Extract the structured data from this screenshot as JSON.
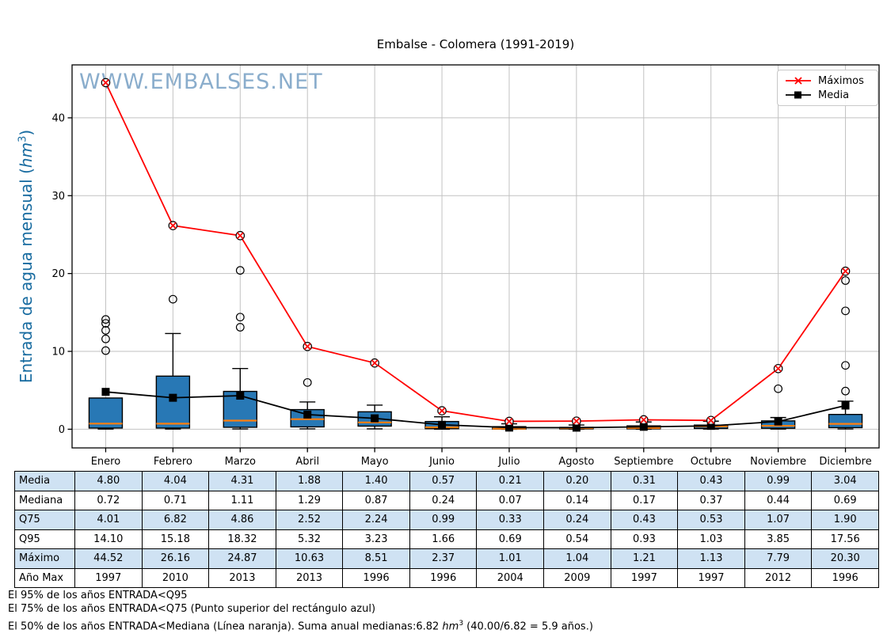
{
  "title": "Embalse - Colomera (1991-2019)",
  "watermark": "WWW.EMBALSES.NET",
  "ylabel": {
    "prefix": "Entrada de agua mensual (",
    "unit": "hm",
    "sup": "3",
    "suffix": ")"
  },
  "legend": {
    "maximos_label": "Máximos",
    "media_label": "Media"
  },
  "colors": {
    "box_fill": "#2878b5",
    "median_orange": "#ff7f0e",
    "max_red": "#ff0000",
    "media_black": "#000000",
    "grid": "#c2c2c2",
    "watermark_blue": "#3d77ab",
    "ylabel_blue": "#176ba0",
    "table_shade": "#cfe2f3",
    "axis": "#000000"
  },
  "chart_data": {
    "type": "boxplot_with_lines",
    "title": "Embalse - Colomera (1991-2019)",
    "ylabel": "Entrada de agua mensual (hm3)",
    "categories": [
      "Enero",
      "Febrero",
      "Marzo",
      "Abril",
      "Mayo",
      "Junio",
      "Julio",
      "Agosto",
      "Septiembre",
      "Octubre",
      "Noviembre",
      "Diciembre"
    ],
    "yticks": [
      0,
      10,
      20,
      30,
      40
    ],
    "ylim": [
      -2.4,
      46.8
    ],
    "grid": true,
    "legend_position": "upper right",
    "series": [
      {
        "name": "Máximos",
        "marker": "circle-x",
        "values": [
          44.52,
          26.16,
          24.87,
          10.63,
          8.51,
          2.37,
          1.01,
          1.04,
          1.21,
          1.13,
          7.79,
          20.3
        ]
      },
      {
        "name": "Media",
        "marker": "square",
        "values": [
          4.8,
          4.04,
          4.31,
          1.88,
          1.4,
          0.57,
          0.21,
          0.2,
          0.31,
          0.43,
          0.99,
          3.04
        ]
      }
    ],
    "boxplot": {
      "median": [
        0.72,
        0.71,
        1.11,
        1.29,
        0.87,
        0.24,
        0.07,
        0.14,
        0.17,
        0.37,
        0.44,
        0.69
      ],
      "q75": [
        4.01,
        6.82,
        4.86,
        2.52,
        2.24,
        0.99,
        0.33,
        0.24,
        0.43,
        0.53,
        1.07,
        1.9
      ],
      "q25_est": [
        0.15,
        0.15,
        0.25,
        0.3,
        0.4,
        0.07,
        0.02,
        0.04,
        0.05,
        0.1,
        0.12,
        0.2
      ],
      "whisker_high_est": [
        4.01,
        12.3,
        7.8,
        3.5,
        3.1,
        1.6,
        0.69,
        0.54,
        0.93,
        1.03,
        1.5,
        3.6
      ],
      "whisker_low_est": [
        0.02,
        0.02,
        0.03,
        0.05,
        0.05,
        0.01,
        0.0,
        0.01,
        0.01,
        0.02,
        0.02,
        0.03
      ],
      "fliers_est": [
        [
          10.1,
          11.6,
          12.7,
          13.6,
          14.1
        ],
        [
          16.7
        ],
        [
          13.1,
          14.4,
          20.4
        ],
        [
          6.0
        ],
        [],
        [],
        [],
        [],
        [],
        [],
        [
          5.2
        ],
        [
          4.9,
          8.2,
          15.2,
          19.1
        ]
      ]
    }
  },
  "table": {
    "row_labels": [
      "Media",
      "Mediana",
      "Q75",
      "Q95",
      "Máximo",
      "Año Max"
    ],
    "columns": [
      "Enero",
      "Febrero",
      "Marzo",
      "Abril",
      "Mayo",
      "Junio",
      "Julio",
      "Agosto",
      "Septiembre",
      "Octubre",
      "Noviembre",
      "Diciembre"
    ],
    "rows": [
      [
        "4.80",
        "4.04",
        "4.31",
        "1.88",
        "1.40",
        "0.57",
        "0.21",
        "0.20",
        "0.31",
        "0.43",
        "0.99",
        "3.04"
      ],
      [
        "0.72",
        "0.71",
        "1.11",
        "1.29",
        "0.87",
        "0.24",
        "0.07",
        "0.14",
        "0.17",
        "0.37",
        "0.44",
        "0.69"
      ],
      [
        "4.01",
        "6.82",
        "4.86",
        "2.52",
        "2.24",
        "0.99",
        "0.33",
        "0.24",
        "0.43",
        "0.53",
        "1.07",
        "1.90"
      ],
      [
        "14.10",
        "15.18",
        "18.32",
        "5.32",
        "3.23",
        "1.66",
        "0.69",
        "0.54",
        "0.93",
        "1.03",
        "3.85",
        "17.56"
      ],
      [
        "44.52",
        "26.16",
        "24.87",
        "10.63",
        "8.51",
        "2.37",
        "1.01",
        "1.04",
        "1.21",
        "1.13",
        "7.79",
        "20.30"
      ],
      [
        "1997",
        "2010",
        "2013",
        "2013",
        "1996",
        "1996",
        "2004",
        "2009",
        "1997",
        "1997",
        "2012",
        "1996"
      ]
    ],
    "shaded_rows": [
      0,
      2,
      4
    ]
  },
  "footnotes": {
    "line1": "El 95% de los años ENTRADA<Q95",
    "line2": "El 75% de los años ENTRADA<Q75 (Punto superior del rectángulo azul)",
    "line3_before": "El 50% de los años ENTRADA<Mediana (Línea naranja). Suma anual medianas:6.82 ",
    "line3_unit": "hm",
    "line3_sup": "3",
    "line3_after": " (40.00/6.82 = 5.9 años.)"
  }
}
